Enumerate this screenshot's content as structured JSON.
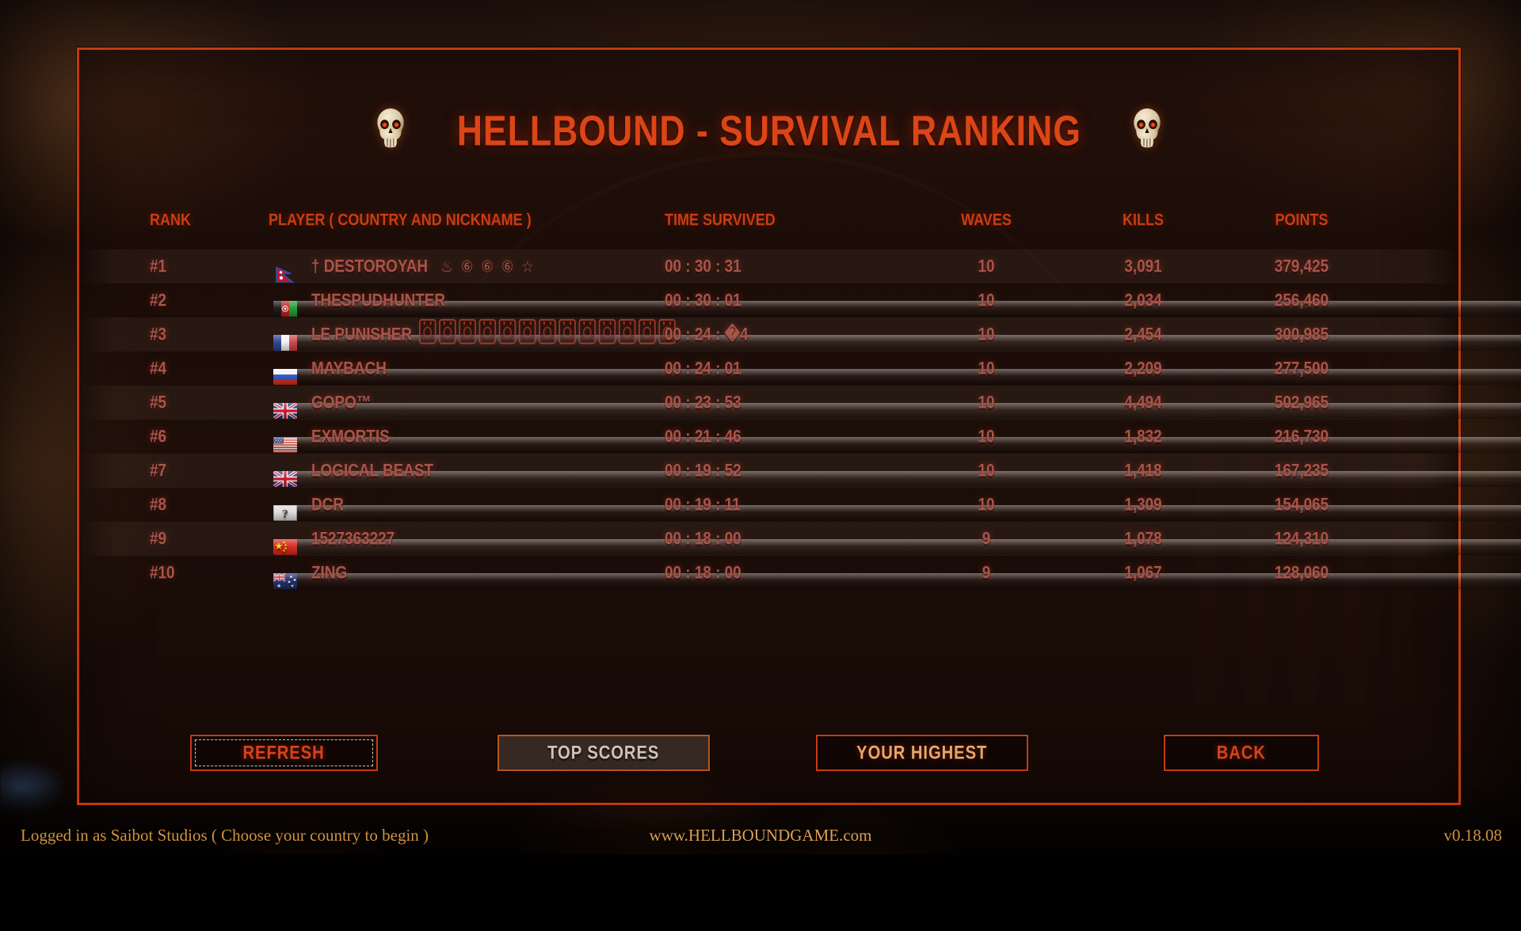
{
  "title": "HELLBOUND - SURVIVAL RANKING",
  "accent_color": "#d8421a",
  "row_text_color": "#a9544a",
  "table": {
    "headers": {
      "rank": "RANK",
      "player": "PLAYER ( COUNTRY AND NICKNAME )",
      "time": "TIME SURVIVED",
      "waves": "WAVES",
      "kills": "KILLS",
      "points": "POINTS"
    },
    "rows": [
      {
        "rank": "#1",
        "flag": "nepal",
        "name": "† DESTOROYAH",
        "suffix": "♨ ⑥ ⑥ ⑥ ☆",
        "time": "00 : 30 : 31",
        "waves": "10",
        "kills": "3,091",
        "points": "379,425"
      },
      {
        "rank": "#2",
        "flag": "afghanistan",
        "name": "THESPUDHUNTER",
        "time": "00 : 30 : 01",
        "waves": "10",
        "kills": "2,034",
        "points": "256,460"
      },
      {
        "rank": "#3",
        "flag": "france",
        "name": "LE.PUNISHER",
        "glyph_boxes": 13,
        "time": "00 : 24 : �4",
        "waves": "10",
        "kills": "2,454",
        "points": "300,985"
      },
      {
        "rank": "#4",
        "flag": "russia",
        "name": "MAYBACH",
        "time": "00 : 24 : 01",
        "waves": "10",
        "kills": "2,209",
        "points": "277,500"
      },
      {
        "rank": "#5",
        "flag": "uk",
        "name": "GOPO™",
        "time": "00 : 23 : 53",
        "waves": "10",
        "kills": "4,494",
        "points": "502,965"
      },
      {
        "rank": "#6",
        "flag": "usa",
        "name": "EXMORTIS",
        "time": "00 : 21 : 46",
        "waves": "10",
        "kills": "1,832",
        "points": "216,730"
      },
      {
        "rank": "#7",
        "flag": "uk",
        "name": "LOGICAL BEAST",
        "time": "00 : 19 : 52",
        "waves": "10",
        "kills": "1,418",
        "points": "167,235"
      },
      {
        "rank": "#8",
        "flag": "unknown",
        "name": "DCR",
        "time": "00 : 19 : 11",
        "waves": "10",
        "kills": "1,309",
        "points": "154,065"
      },
      {
        "rank": "#9",
        "flag": "china",
        "name": "1527363227",
        "time": "00 : 18 : 00",
        "waves": "9",
        "kills": "1,078",
        "points": "124,310"
      },
      {
        "rank": "#10",
        "flag": "australia",
        "name": "ZING",
        "time": "00 : 18 : 00",
        "waves": "9",
        "kills": "1,067",
        "points": "128,060"
      }
    ]
  },
  "buttons": [
    {
      "label": "REFRESH",
      "state": "focused"
    },
    {
      "label": "TOP SCORES",
      "state": "hover"
    },
    {
      "label": "YOUR HIGHEST",
      "state": "highlight"
    },
    {
      "label": "BACK",
      "state": "normal"
    }
  ],
  "footer": {
    "left": "Logged in as Saibot Studios ( Choose your country to begin )",
    "center": "www.HELLBOUNDGAME.com",
    "right": "v0.18.08"
  }
}
